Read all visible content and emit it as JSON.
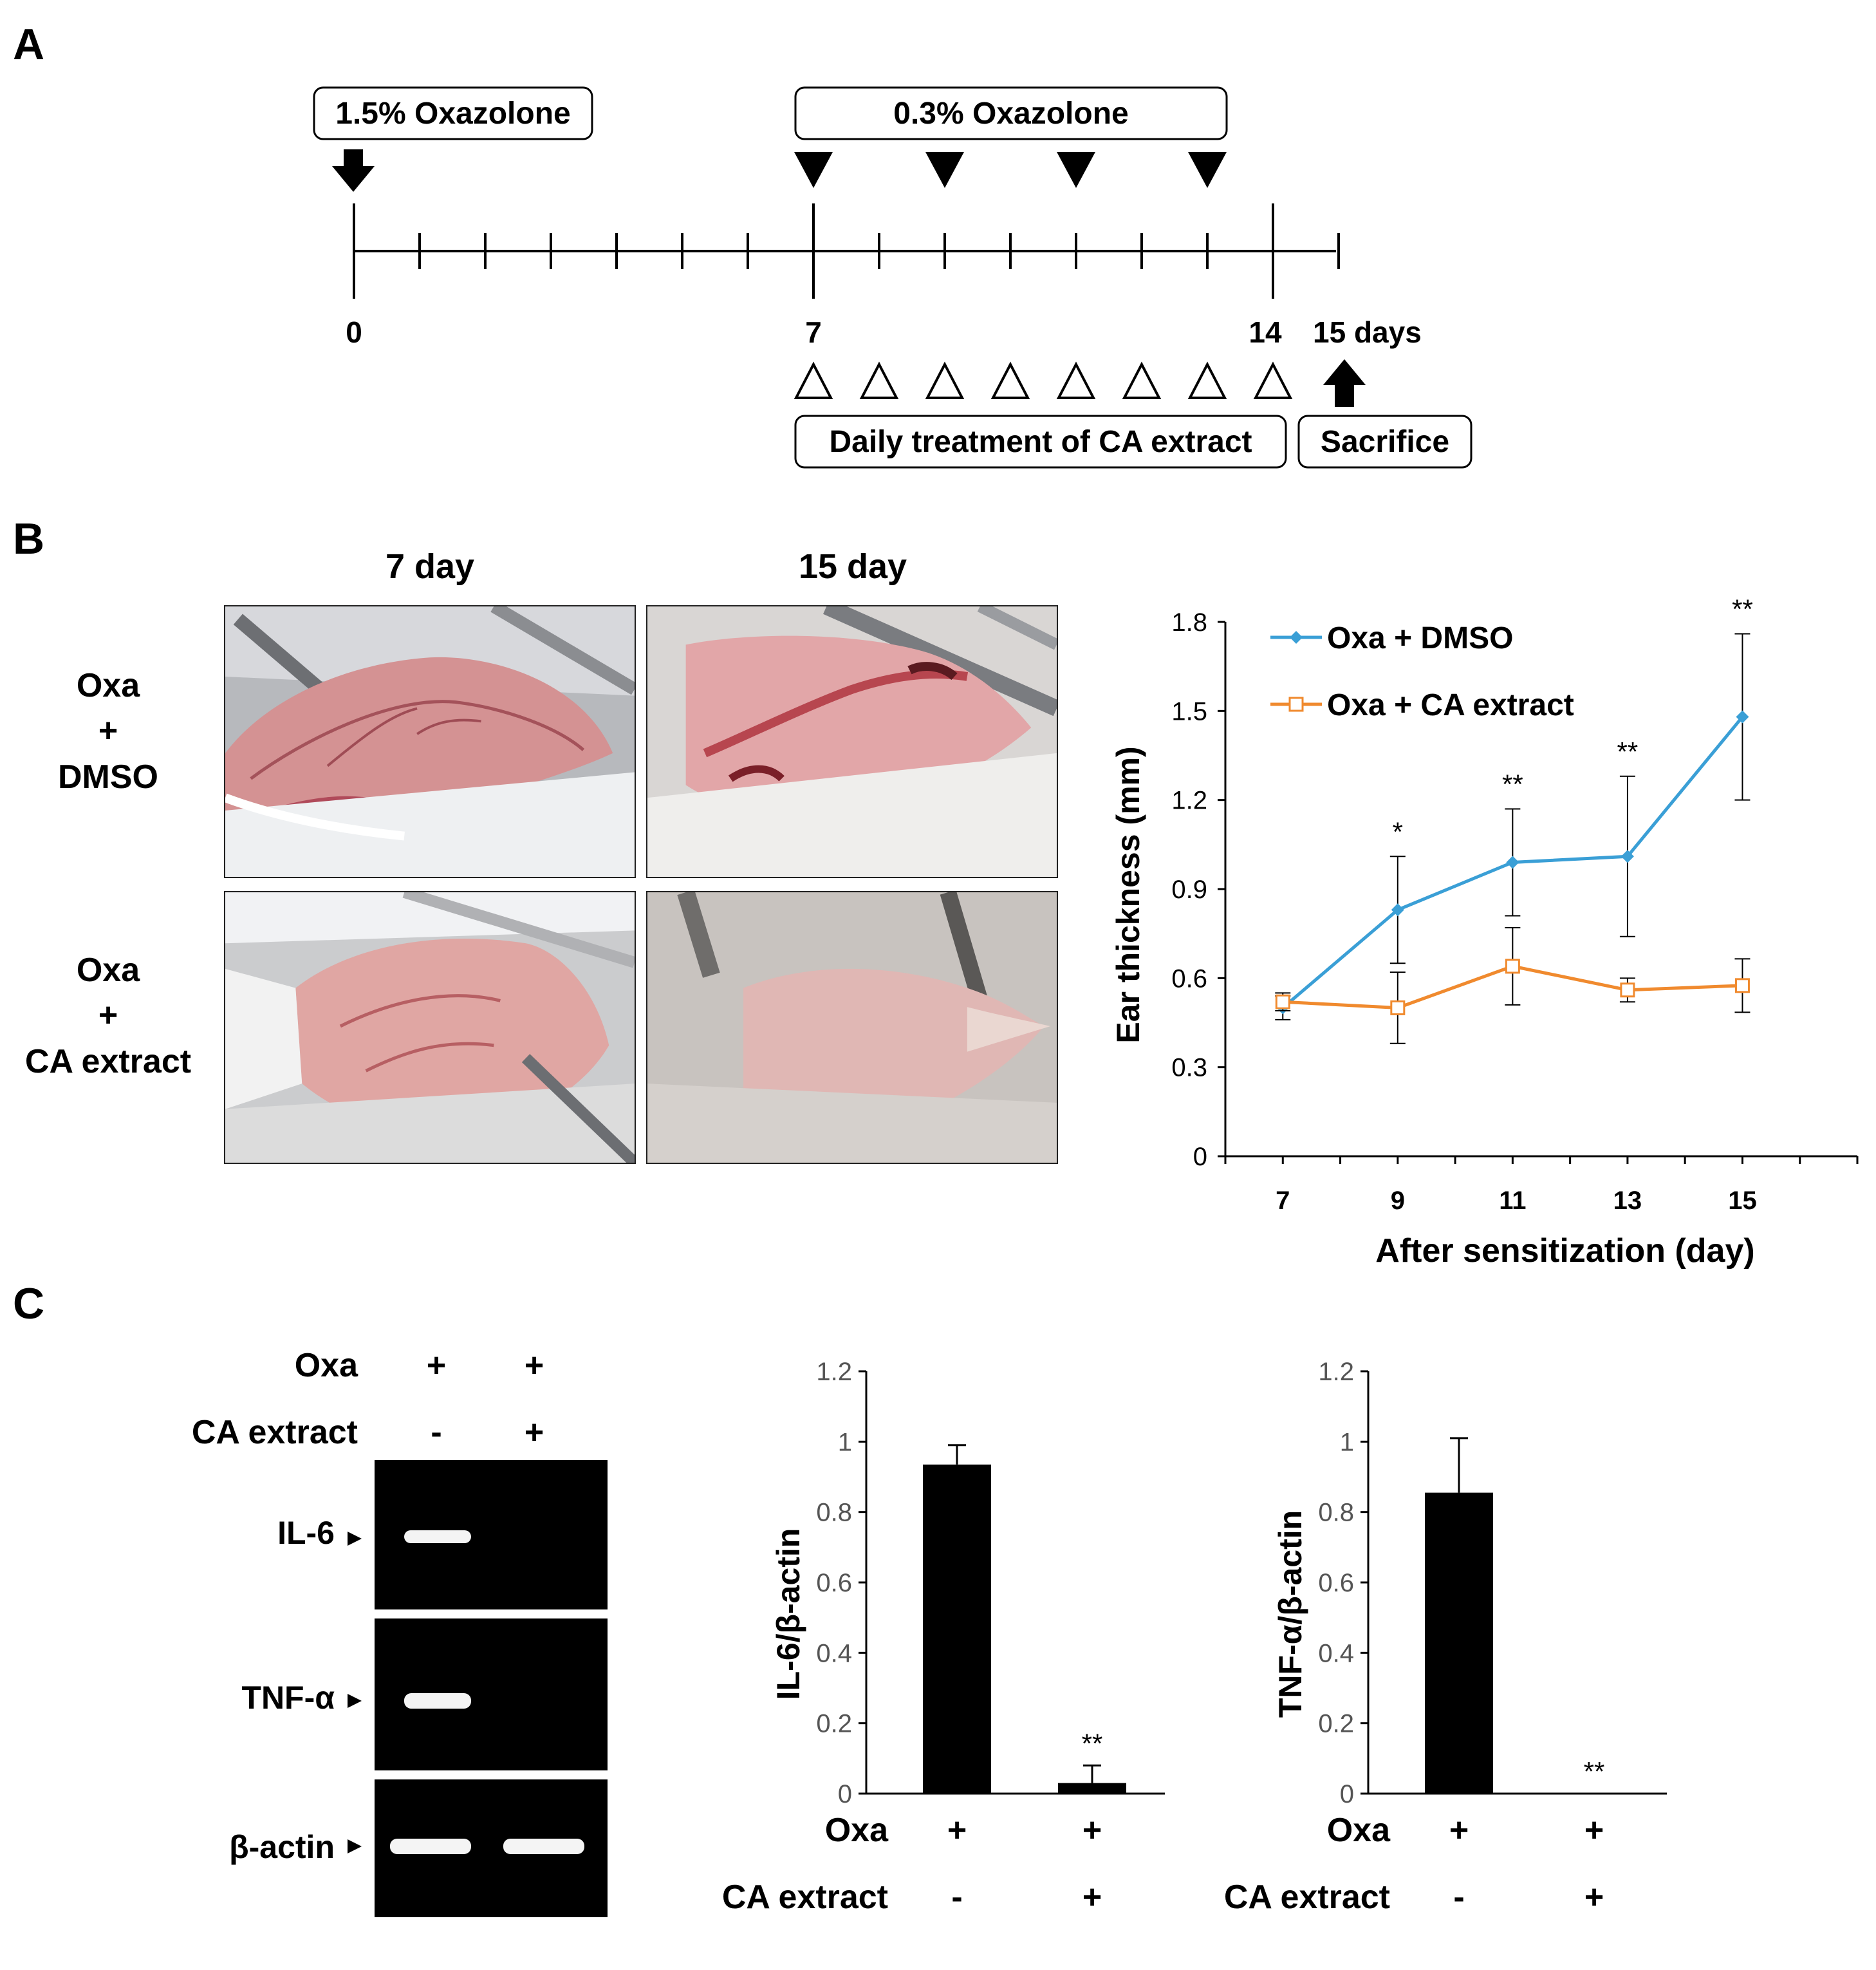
{
  "panel_labels": {
    "a": "A",
    "b": "B",
    "c": "C"
  },
  "panel_a": {
    "sensitization_label": "1.5% Oxazolone",
    "challenge_label": "0.3% Oxazolone",
    "day_labels": [
      "0",
      "7",
      "14",
      "15 days"
    ],
    "treatment_label": "Daily treatment of CA extract",
    "sacrifice_label": "Sacrifice"
  },
  "panel_b": {
    "col_titles": [
      "7 day",
      "15 day"
    ],
    "row1_label": [
      "Oxa",
      "+",
      "DMSO"
    ],
    "row2_label": [
      "Oxa",
      "+",
      "CA extract"
    ]
  },
  "panel_c": {
    "row_labels": {
      "oxa": "Oxa",
      "ca": "CA extract"
    },
    "lane_signs": {
      "oxa": [
        "+",
        "+"
      ],
      "ca": [
        "-",
        "+"
      ]
    },
    "gel_labels": [
      "IL-6",
      "TNF-α",
      "β-actin"
    ]
  },
  "chart_data": [
    {
      "type": "line",
      "xlabel": "After sensitization (day)",
      "ylabel": "Ear thickness (mm)",
      "xlim": [
        6,
        17
      ],
      "ylim": [
        0,
        1.8
      ],
      "x_ticks": [
        "7",
        "9",
        "11",
        "13",
        "15"
      ],
      "y_ticks": [
        "0",
        "0.3",
        "0.6",
        "0.9",
        "1.2",
        "1.5",
        "1.8"
      ],
      "legend_position": "top-left",
      "series": [
        {
          "name": "Oxa + DMSO",
          "color": "#3a9fd6",
          "marker": "diamond",
          "x": [
            7,
            9,
            11,
            13,
            15
          ],
          "y": [
            0.5,
            0.83,
            0.99,
            1.01,
            1.48
          ],
          "error": [
            0.04,
            0.18,
            0.18,
            0.27,
            0.28
          ]
        },
        {
          "name": "Oxa + CA extract",
          "color": "#f08a2e",
          "marker": "square-open",
          "x": [
            7,
            9,
            11,
            13,
            15
          ],
          "y": [
            0.52,
            0.5,
            0.64,
            0.56,
            0.575
          ],
          "error": [
            0.03,
            0.12,
            0.13,
            0.04,
            0.09
          ]
        }
      ],
      "annotations": [
        {
          "x": 9,
          "text": "*"
        },
        {
          "x": 11,
          "text": "**"
        },
        {
          "x": 13,
          "text": "**"
        },
        {
          "x": 15,
          "text": "**"
        }
      ]
    },
    {
      "type": "bar",
      "ylabel": "IL-6/β-actin",
      "ylim": [
        0,
        1.2
      ],
      "y_ticks": [
        "0",
        "0.2",
        "0.4",
        "0.6",
        "0.8",
        "1",
        "1.2"
      ],
      "categories": [
        "Oxa + / CA extract -",
        "Oxa + / CA extract +"
      ],
      "values": [
        0.935,
        0.03
      ],
      "error": [
        0.055,
        0.05
      ],
      "annotations": [
        {
          "index": 1,
          "text": "**"
        }
      ],
      "row_labels": {
        "oxa": "Oxa",
        "ca": "CA extract"
      },
      "signs": {
        "oxa": [
          "+",
          "+"
        ],
        "ca": [
          "-",
          "+"
        ]
      }
    },
    {
      "type": "bar",
      "ylabel": "TNF-α/β-actin",
      "ylim": [
        0,
        1.2
      ],
      "y_ticks": [
        "0",
        "0.2",
        "0.4",
        "0.6",
        "0.8",
        "1",
        "1.2"
      ],
      "categories": [
        "Oxa + / CA extract -",
        "Oxa + / CA extract +"
      ],
      "values": [
        0.855,
        0.0
      ],
      "error": [
        0.155,
        0.0
      ],
      "annotations": [
        {
          "index": 1,
          "text": "**"
        }
      ],
      "row_labels": {
        "oxa": "Oxa",
        "ca": "CA extract"
      },
      "signs": {
        "oxa": [
          "+",
          "+"
        ],
        "ca": [
          "-",
          "+"
        ]
      }
    }
  ]
}
